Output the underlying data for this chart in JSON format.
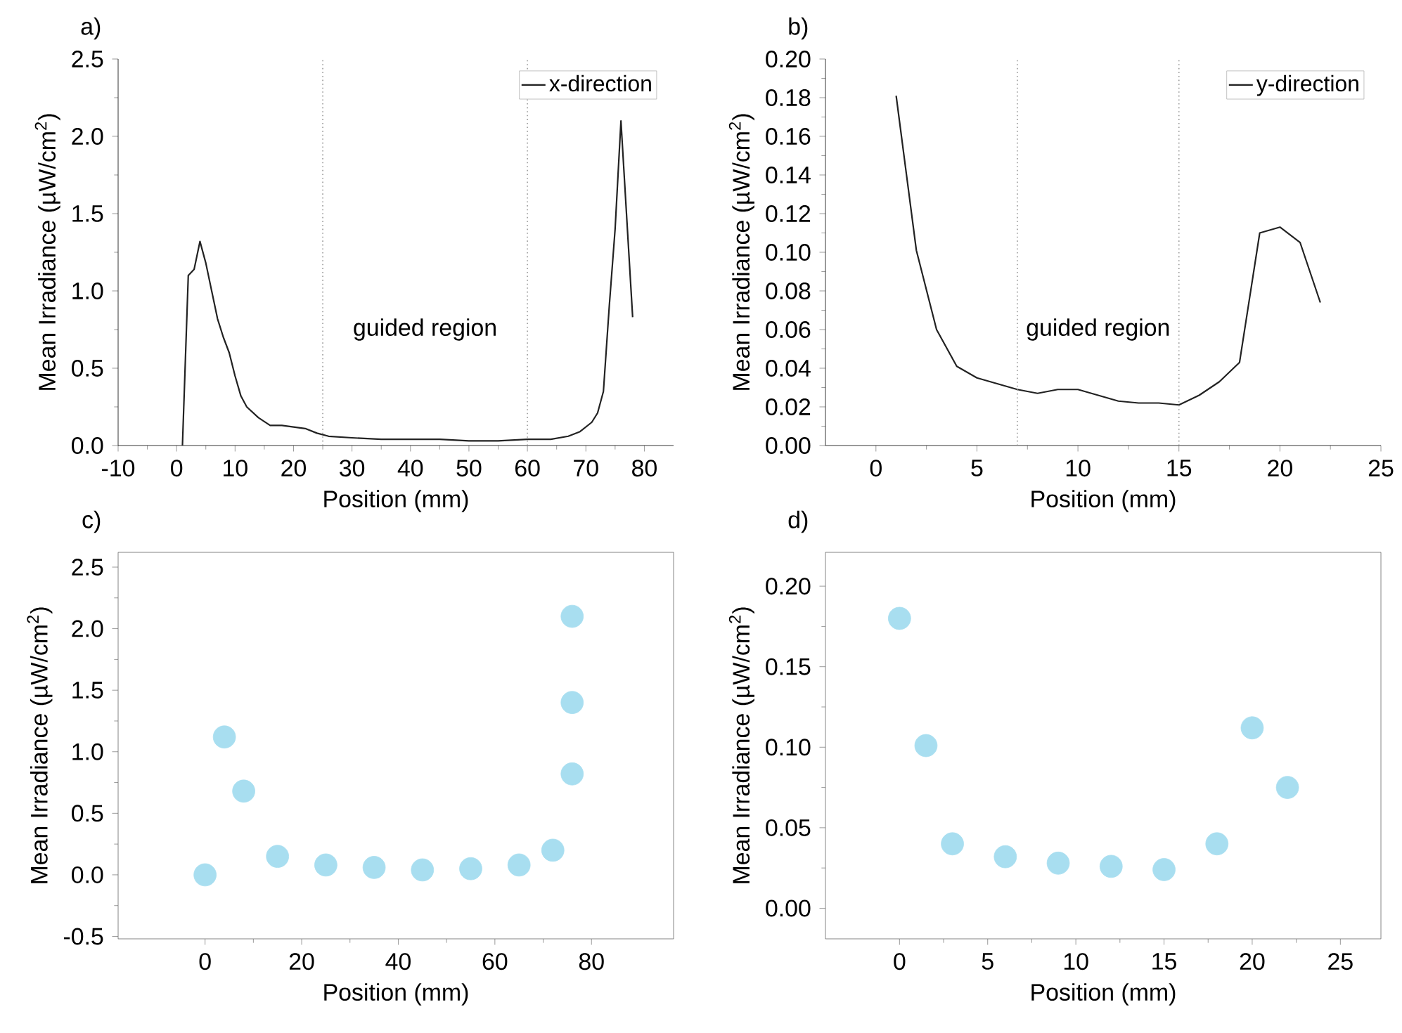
{
  "chart_data": [
    {
      "type": "line",
      "title": "a)",
      "xlabel": "Position (mm)",
      "ylabel": "Mean Irradiance (µW/cm$^{2}$)",
      "legend": "top right",
      "line_style": "solid",
      "xlim": [
        -10,
        85
      ],
      "ylim": [
        0,
        2.5
      ],
      "xticks": [
        -10,
        0,
        10,
        20,
        30,
        40,
        50,
        60,
        70,
        80
      ],
      "yticks": [
        {
          "value": 0,
          "label": "0.0"
        },
        0.5,
        {
          "value": 1,
          "label": "1.0"
        },
        1.5,
        {
          "value": 2,
          "label": "2.0"
        },
        2.5
      ],
      "series": [
        {
          "name": "x-direction",
          "color": "#222222",
          "x": [
            1,
            2,
            3,
            4,
            5,
            6,
            7,
            8,
            9,
            10,
            11,
            12,
            14,
            16,
            18,
            20,
            22,
            24,
            26,
            30,
            35,
            40,
            45,
            50,
            55,
            60,
            64,
            67,
            69,
            71,
            72,
            73,
            74,
            75,
            76,
            78
          ],
          "values": [
            0,
            1.1,
            1.14,
            1.32,
            1.18,
            1.0,
            0.82,
            0.7,
            0.6,
            0.45,
            0.32,
            0.25,
            0.18,
            0.13,
            0.13,
            0.12,
            0.11,
            0.08,
            0.06,
            0.05,
            0.04,
            0.04,
            0.04,
            0.03,
            0.03,
            0.04,
            0.04,
            0.06,
            0.09,
            0.15,
            0.21,
            0.35,
            0.9,
            1.4,
            2.1,
            0.83
          ]
        }
      ],
      "ref_lines": [
        {
          "axis": "x",
          "value": 25,
          "color": "#999999",
          "line_style": "dotted"
        },
        {
          "axis": "x",
          "value": 60,
          "color": "#999999",
          "line_style": "dotted"
        }
      ],
      "annotations": [
        "guided region"
      ]
    },
    {
      "type": "line",
      "title": "b)",
      "xlabel": "Position (mm)",
      "ylabel": "Mean Irradiance (µW/cm$^{2}$)",
      "legend": "top right",
      "line_style": "solid",
      "xlim": [
        -2.5,
        25
      ],
      "ylim": [
        0,
        0.2
      ],
      "xticks": [
        0,
        5,
        10,
        15,
        20,
        25
      ],
      "yticks": [
        {
          "value": 0,
          "label": "0.00"
        },
        0.02,
        0.04,
        0.06,
        0.08,
        {
          "value": 0.1,
          "label": "0.10"
        },
        0.12,
        0.14,
        0.16,
        0.18,
        {
          "value": 0.2,
          "label": "0.20"
        }
      ],
      "series": [
        {
          "name": "y-direction",
          "color": "#222222",
          "x": [
            1,
            2,
            3,
            4,
            5,
            6,
            7,
            8,
            9,
            10,
            11,
            12,
            13,
            14,
            15,
            16,
            17,
            18,
            19,
            20,
            21,
            22
          ],
          "values": [
            0.181,
            0.101,
            0.06,
            0.041,
            0.035,
            0.032,
            0.029,
            0.027,
            0.029,
            0.029,
            0.026,
            0.023,
            0.022,
            0.022,
            0.021,
            0.026,
            0.033,
            0.043,
            0.11,
            0.113,
            0.105,
            0.074
          ]
        }
      ],
      "ref_lines": [
        {
          "axis": "x",
          "value": 7,
          "color": "#999999",
          "line_style": "dotted"
        },
        {
          "axis": "x",
          "value": 15,
          "color": "#999999",
          "line_style": "dotted"
        }
      ],
      "annotations": [
        "guided region"
      ]
    },
    {
      "type": "scatter",
      "title": "c)",
      "xlabel": "Position (mm)",
      "ylabel": "Mean Irradiance (µW/cm$^{2}$)",
      "xlim": [
        -18,
        97
      ],
      "ylim": [
        -0.52,
        2.62
      ],
      "xticks": [
        0,
        20,
        40,
        60,
        80
      ],
      "yticks": [
        -0.5,
        {
          "value": 0,
          "label": "0.0"
        },
        0.5,
        {
          "value": 1,
          "label": "1.0"
        },
        1.5,
        {
          "value": 2,
          "label": "2.0"
        },
        2.5
      ],
      "series": [
        {
          "color": "#a8def0",
          "x": [
            0,
            4,
            8,
            15,
            25,
            35,
            45,
            55,
            65,
            72,
            76,
            76,
            76
          ],
          "values": [
            0.0,
            1.12,
            0.68,
            0.15,
            0.08,
            0.06,
            0.04,
            0.05,
            0.08,
            0.2,
            1.4,
            2.1,
            0.82
          ]
        }
      ]
    },
    {
      "type": "scatter",
      "title": "d)",
      "xlabel": "Position (mm)",
      "ylabel": "Mean Irradiance (µW/cm$^{2}$)",
      "xlim": [
        -4.2,
        27.3
      ],
      "ylim": [
        -0.019,
        0.221
      ],
      "xticks": [
        0,
        5,
        10,
        15,
        20,
        25
      ],
      "yticks": [
        {
          "value": 0,
          "label": "0.00"
        },
        0.05,
        {
          "value": 0.1,
          "label": "0.10"
        },
        0.15,
        {
          "value": 0.2,
          "label": "0.20"
        }
      ],
      "series": [
        {
          "color": "#a8def0",
          "x": [
            0,
            1.5,
            3,
            6,
            9,
            12,
            15,
            18,
            20,
            22
          ],
          "values": [
            0.18,
            0.101,
            0.04,
            0.032,
            0.028,
            0.026,
            0.024,
            0.04,
            0.112,
            0.075
          ]
        }
      ]
    }
  ]
}
